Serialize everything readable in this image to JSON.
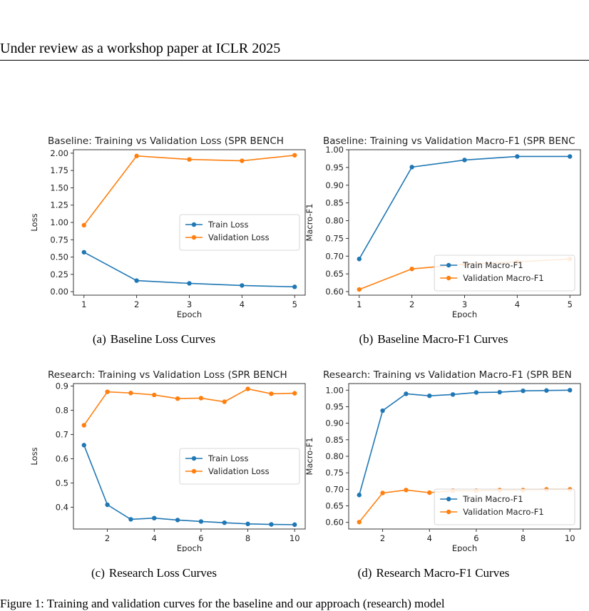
{
  "header": {
    "running_head": "Under review as a workshop paper at ICLR 2025"
  },
  "colors": {
    "train": "#1f77b4",
    "validation": "#ff7f0e"
  },
  "panels": [
    {
      "caption_label": "(a)",
      "caption_text": "Baseline Loss Curves",
      "chart_data": {
        "type": "line",
        "title": "Baseline: Training vs Validation Loss (SPR BENCH",
        "xlabel": "Epoch",
        "ylabel": "Loss",
        "x": [
          1,
          2,
          3,
          4,
          5
        ],
        "xlim": [
          0.8,
          5.2
        ],
        "ylim": [
          -0.05,
          2.05
        ],
        "xticks": [
          1,
          2,
          3,
          4,
          5
        ],
        "yticks": [
          0.0,
          0.25,
          0.5,
          0.75,
          1.0,
          1.25,
          1.5,
          1.75,
          2.0
        ],
        "ytick_labels": [
          "0.00",
          "0.25",
          "0.50",
          "0.75",
          "1.00",
          "1.25",
          "1.50",
          "1.75",
          "2.00"
        ],
        "legend_position": "center-right",
        "series": [
          {
            "name": "Train Loss",
            "color": "#1f77b4",
            "values": [
              0.57,
              0.16,
              0.12,
              0.09,
              0.07
            ]
          },
          {
            "name": "Validation Loss",
            "color": "#ff7f0e",
            "values": [
              0.96,
              1.96,
              1.91,
              1.89,
              1.97
            ]
          }
        ]
      }
    },
    {
      "caption_label": "(b)",
      "caption_text": "Baseline Macro-F1 Curves",
      "chart_data": {
        "type": "line",
        "title": "Baseline: Training vs Validation Macro-F1 (SPR BENC",
        "xlabel": "Epoch",
        "ylabel": "Macro-F1",
        "x": [
          1,
          2,
          3,
          4,
          5
        ],
        "xlim": [
          0.8,
          5.2
        ],
        "ylim": [
          0.59,
          1.0
        ],
        "xticks": [
          1,
          2,
          3,
          4,
          5
        ],
        "yticks": [
          0.6,
          0.65,
          0.7,
          0.75,
          0.8,
          0.85,
          0.9,
          0.95,
          1.0
        ],
        "ytick_labels": [
          "0.60",
          "0.65",
          "0.70",
          "0.75",
          "0.80",
          "0.85",
          "0.90",
          "0.95",
          "1.00"
        ],
        "legend_position": "lower-right",
        "series": [
          {
            "name": "Train Macro-F1",
            "color": "#1f77b4",
            "values": [
              0.692,
              0.951,
              0.971,
              0.981,
              0.981
            ]
          },
          {
            "name": "Validation Macro-F1",
            "color": "#ff7f0e",
            "values": [
              0.606,
              0.664,
              0.677,
              0.684,
              0.692
            ]
          }
        ]
      }
    },
    {
      "caption_label": "(c)",
      "caption_text": "Research Loss Curves",
      "chart_data": {
        "type": "line",
        "title": "Research: Training vs Validation Loss (SPR BENCH",
        "xlabel": "Epoch",
        "ylabel": "Loss",
        "x": [
          1,
          2,
          3,
          4,
          5,
          6,
          7,
          8,
          9,
          10
        ],
        "xlim": [
          0.55,
          10.45
        ],
        "ylim": [
          0.31,
          0.91
        ],
        "xticks": [
          2,
          4,
          6,
          8,
          10
        ],
        "yticks": [
          0.4,
          0.5,
          0.6,
          0.7,
          0.8,
          0.9
        ],
        "ytick_labels": [
          "0.4",
          "0.5",
          "0.6",
          "0.7",
          "0.8",
          "0.9"
        ],
        "legend_position": "center-right",
        "series": [
          {
            "name": "Train Loss",
            "color": "#1f77b4",
            "values": [
              0.656,
              0.41,
              0.35,
              0.355,
              0.347,
              0.341,
              0.336,
              0.331,
              0.329,
              0.328
            ]
          },
          {
            "name": "Validation Loss",
            "color": "#ff7f0e",
            "values": [
              0.738,
              0.876,
              0.871,
              0.863,
              0.848,
              0.85,
              0.835,
              0.888,
              0.868,
              0.87
            ]
          }
        ]
      }
    },
    {
      "caption_label": "(d)",
      "caption_text": "Research Macro-F1 Curves",
      "chart_data": {
        "type": "line",
        "title": "Research: Training vs Validation Macro-F1 (SPR BEN",
        "xlabel": "Epoch",
        "ylabel": "Macro-F1",
        "x": [
          1,
          2,
          3,
          4,
          5,
          6,
          7,
          8,
          9,
          10
        ],
        "xlim": [
          0.55,
          10.45
        ],
        "ylim": [
          0.58,
          1.02
        ],
        "xticks": [
          2,
          4,
          6,
          8,
          10
        ],
        "yticks": [
          0.6,
          0.65,
          0.7,
          0.75,
          0.8,
          0.85,
          0.9,
          0.95,
          1.0
        ],
        "ytick_labels": [
          "0.60",
          "0.65",
          "0.70",
          "0.75",
          "0.80",
          "0.85",
          "0.90",
          "0.95",
          "1.00"
        ],
        "legend_position": "lower-right",
        "series": [
          {
            "name": "Train Macro-F1",
            "color": "#1f77b4",
            "values": [
              0.683,
              0.938,
              0.989,
              0.983,
              0.987,
              0.993,
              0.994,
              0.998,
              0.999,
              1.0
            ]
          },
          {
            "name": "Validation Macro-F1",
            "color": "#ff7f0e",
            "values": [
              0.601,
              0.689,
              0.698,
              0.69,
              0.696,
              0.696,
              0.698,
              0.698,
              0.7,
              0.7
            ]
          }
        ]
      }
    }
  ],
  "figure_caption": "Figure 1:   Training and validation curves for the baseline and our approach (research) model"
}
